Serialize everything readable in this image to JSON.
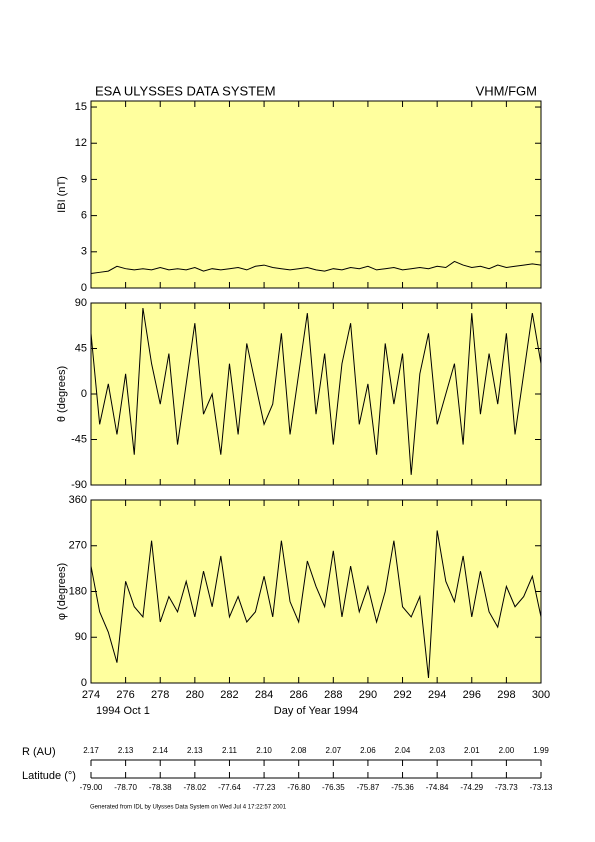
{
  "header": {
    "title": "ESA ULYSSES DATA SYSTEM",
    "instrument": "VHM/FGM"
  },
  "chart_data": [
    {
      "type": "line",
      "ylabel": "IBI (nT)",
      "color": "#000000",
      "x": [
        274,
        274.5,
        275,
        275.5,
        276,
        276.5,
        277,
        277.5,
        278,
        278.5,
        279,
        279.5,
        280,
        280.5,
        281,
        281.5,
        282,
        282.5,
        283,
        283.5,
        284,
        284.5,
        285,
        285.5,
        286,
        286.5,
        287,
        287.5,
        288,
        288.5,
        289,
        289.5,
        290,
        290.5,
        291,
        291.5,
        292,
        292.5,
        293,
        293.5,
        294,
        294.5,
        295,
        295.5,
        296,
        296.5,
        297,
        297.5,
        298,
        298.5,
        299,
        299.5,
        300
      ],
      "values": [
        1.2,
        1.3,
        1.4,
        1.8,
        1.6,
        1.5,
        1.6,
        1.5,
        1.7,
        1.5,
        1.6,
        1.5,
        1.7,
        1.4,
        1.6,
        1.5,
        1.6,
        1.7,
        1.5,
        1.8,
        1.9,
        1.7,
        1.6,
        1.5,
        1.6,
        1.7,
        1.5,
        1.4,
        1.6,
        1.5,
        1.7,
        1.6,
        1.8,
        1.5,
        1.6,
        1.7,
        1.5,
        1.6,
        1.7,
        1.6,
        1.8,
        1.7,
        2.2,
        1.9,
        1.7,
        1.8,
        1.6,
        1.9,
        1.7,
        1.8,
        1.9,
        2.0,
        1.9
      ],
      "xlim": [
        274,
        300
      ],
      "xticks": [
        274,
        276,
        278,
        280,
        282,
        284,
        286,
        288,
        290,
        292,
        294,
        296,
        298,
        300
      ],
      "ylim": [
        0,
        15.5
      ],
      "yticks": [
        0,
        3,
        6,
        9,
        12,
        15
      ]
    },
    {
      "type": "line",
      "ylabel": "θ (degrees)",
      "color": "#000000",
      "x": [
        274,
        274.5,
        275,
        275.5,
        276,
        276.5,
        277,
        277.5,
        278,
        278.5,
        279,
        279.5,
        280,
        280.5,
        281,
        281.5,
        282,
        282.5,
        283,
        283.5,
        284,
        284.5,
        285,
        285.5,
        286,
        286.5,
        287,
        287.5,
        288,
        288.5,
        289,
        289.5,
        290,
        290.5,
        291,
        291.5,
        292,
        292.5,
        293,
        293.5,
        294,
        294.5,
        295,
        295.5,
        296,
        296.5,
        297,
        297.5,
        298,
        298.5,
        299,
        299.5,
        300
      ],
      "values": [
        60,
        -30,
        10,
        -40,
        20,
        -60,
        85,
        30,
        -10,
        40,
        -50,
        10,
        70,
        -20,
        0,
        -60,
        30,
        -40,
        50,
        10,
        -30,
        -10,
        60,
        -40,
        20,
        80,
        -20,
        40,
        -50,
        30,
        70,
        -30,
        10,
        -60,
        50,
        -10,
        40,
        -80,
        20,
        60,
        -30,
        0,
        30,
        -50,
        80,
        -20,
        40,
        -10,
        60,
        -40,
        20,
        80,
        30
      ],
      "xlim": [
        274,
        300
      ],
      "xticks": [
        274,
        276,
        278,
        280,
        282,
        284,
        286,
        288,
        290,
        292,
        294,
        296,
        298,
        300
      ],
      "ylim": [
        -90,
        90
      ],
      "yticks": [
        -90,
        -45,
        0,
        45,
        90
      ]
    },
    {
      "type": "line",
      "ylabel": "φ (degrees)",
      "xlabel": "Day of Year 1994",
      "date_label": "1994 Oct  1",
      "color": "#000000",
      "x": [
        274,
        274.5,
        275,
        275.5,
        276,
        276.5,
        277,
        277.5,
        278,
        278.5,
        279,
        279.5,
        280,
        280.5,
        281,
        281.5,
        282,
        282.5,
        283,
        283.5,
        284,
        284.5,
        285,
        285.5,
        286,
        286.5,
        287,
        287.5,
        288,
        288.5,
        289,
        289.5,
        290,
        290.5,
        291,
        291.5,
        292,
        292.5,
        293,
        293.5,
        294,
        294.5,
        295,
        295.5,
        296,
        296.5,
        297,
        297.5,
        298,
        298.5,
        299,
        299.5,
        300
      ],
      "values": [
        230,
        140,
        100,
        40,
        200,
        150,
        130,
        280,
        120,
        170,
        140,
        200,
        130,
        220,
        150,
        250,
        130,
        170,
        120,
        140,
        210,
        130,
        280,
        160,
        120,
        240,
        190,
        150,
        260,
        130,
        230,
        140,
        190,
        120,
        180,
        280,
        150,
        130,
        170,
        10,
        300,
        200,
        160,
        250,
        130,
        220,
        140,
        110,
        190,
        150,
        170,
        210,
        130
      ],
      "xlim": [
        274,
        300
      ],
      "xticks": [
        274,
        276,
        278,
        280,
        282,
        284,
        286,
        288,
        290,
        292,
        294,
        296,
        298,
        300
      ],
      "ylim": [
        0,
        360
      ],
      "yticks": [
        0,
        90,
        180,
        270,
        360
      ]
    }
  ],
  "ephemeris": {
    "r_label": "R (AU)",
    "r_values": [
      "2.17",
      "2.13",
      "2.14",
      "2.13",
      "2.11",
      "2.10",
      "2.08",
      "2.07",
      "2.06",
      "2.04",
      "2.03",
      "2.01",
      "2.00",
      "1.99"
    ],
    "lat_label": "Latitude (°)",
    "lat_values": [
      "-79.00",
      "-78.70",
      "-78.38",
      "-78.02",
      "-77.64",
      "-77.23",
      "-76.80",
      "-76.35",
      "-75.87",
      "-75.36",
      "-74.84",
      "-74.29",
      "-73.73",
      "-73.13"
    ]
  },
  "footer": "Generated from IDL by Ulysses Data System on Wed Jul  4 17:22:57 2001"
}
